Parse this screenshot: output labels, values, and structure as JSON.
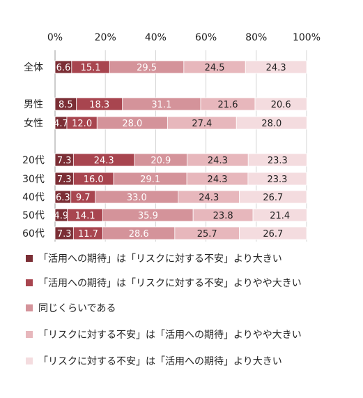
{
  "chart_data": {
    "type": "bar",
    "orientation": "horizontal",
    "stacked": true,
    "percent_stacked": true,
    "xlim": [
      0,
      100
    ],
    "x_ticks": [
      "0%",
      "20%",
      "40%",
      "60%",
      "80%",
      "100%"
    ],
    "grid": "vertical",
    "legend_position": "bottom",
    "categories": [
      "全体",
      "男性",
      "女性",
      "20代",
      "30代",
      "40代",
      "50代",
      "60代"
    ],
    "series": [
      {
        "name": "「活用への期待」は「リスクに対する不安」より大きい",
        "color": "#7b2e35",
        "values": [
          6.6,
          8.5,
          4.7,
          7.3,
          7.3,
          6.3,
          4.9,
          7.3
        ]
      },
      {
        "name": "「活用への期待」は「リスクに対する不安」よりやや大きい",
        "color": "#a8454f",
        "values": [
          15.1,
          18.3,
          12.0,
          24.3,
          16.0,
          9.7,
          14.1,
          11.7
        ]
      },
      {
        "name": "同じくらいである",
        "color": "#d4939a",
        "values": [
          29.5,
          31.1,
          28.0,
          20.9,
          29.1,
          33.0,
          35.9,
          28.6
        ]
      },
      {
        "name": "「リスクに対する不安」は「活用への期待」よりやや大きい",
        "color": "#e7b7bc",
        "values": [
          24.5,
          21.6,
          27.4,
          24.3,
          24.3,
          24.3,
          23.8,
          25.7
        ]
      },
      {
        "name": "「リスクに対する不安」は「活用への期待」より大きい",
        "color": "#f4dcdf",
        "values": [
          24.3,
          20.6,
          28.0,
          23.3,
          23.3,
          26.7,
          21.4,
          26.7
        ]
      }
    ]
  }
}
